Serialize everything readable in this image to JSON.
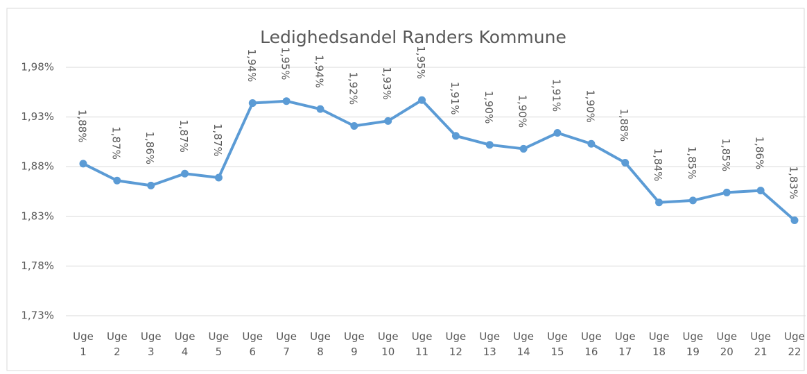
{
  "chart_data": {
    "type": "line",
    "title": "Ledighedsandel Randers Kommune",
    "categories": [
      "Uge 1",
      "Uge 2",
      "Uge 3",
      "Uge 4",
      "Uge 5",
      "Uge 6",
      "Uge 7",
      "Uge 8",
      "Uge 9",
      "Uge 10",
      "Uge 11",
      "Uge 12",
      "Uge 13",
      "Uge 14",
      "Uge 15",
      "Uge 16",
      "Uge 17",
      "Uge 18",
      "Uge 19",
      "Uge 20",
      "Uge 21",
      "Uge 22"
    ],
    "series": [
      {
        "color": "#5b9bd5",
        "values": [
          1.883,
          1.866,
          1.861,
          1.873,
          1.869,
          1.944,
          1.946,
          1.938,
          1.921,
          1.926,
          1.947,
          1.911,
          1.902,
          1.898,
          1.914,
          1.903,
          1.884,
          1.844,
          1.846,
          1.854,
          1.856,
          1.826
        ],
        "value_labels": [
          "1,88%",
          "1,87%",
          "1,86%",
          "1,87%",
          "1,87%",
          "1,94%",
          "1,95%",
          "1,94%",
          "1,92%",
          "1,93%",
          "1,95%",
          "1,91%",
          "1,90%",
          "1,90%",
          "1,91%",
          "1,90%",
          "1,88%",
          "1,84%",
          "1,85%",
          "1,85%",
          "1,86%",
          "1,83%"
        ]
      }
    ],
    "ylim": [
      1.73,
      1.98
    ],
    "yticks": [
      {
        "value": 1.73,
        "label": "1,73%"
      },
      {
        "value": 1.78,
        "label": "1,78%"
      },
      {
        "value": 1.83,
        "label": "1,83%"
      },
      {
        "value": 1.88,
        "label": "1,88%"
      },
      {
        "value": 1.93,
        "label": "1,93%"
      },
      {
        "value": 1.98,
        "label": "1,98%"
      }
    ],
    "grid": true
  }
}
